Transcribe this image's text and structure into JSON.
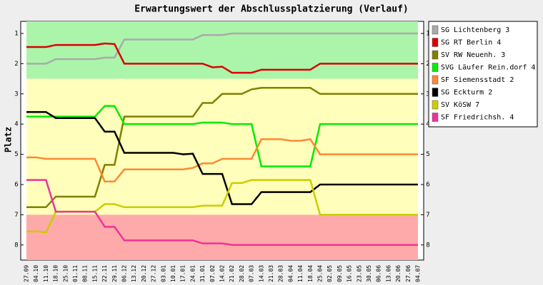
{
  "chart_data": {
    "type": "line",
    "title": "Erwartungswert der Abschlussplatzierung (Verlauf)",
    "y_label": "Platz",
    "categories": [
      "27.09",
      "04.10",
      "11.10",
      "18.10",
      "25.10",
      "01.11",
      "08.11",
      "15.11",
      "22.11",
      "29.11",
      "06.12",
      "13.12",
      "20.12",
      "27.12",
      "03.01",
      "10.01",
      "17.01",
      "24.01",
      "31.01",
      "07.02",
      "14.02",
      "21.02",
      "28.02",
      "07.03",
      "14.03",
      "21.03",
      "28.03",
      "04.04",
      "11.04",
      "18.04",
      "25.04",
      "02.05",
      "09.05",
      "16.05",
      "23.05",
      "30.05",
      "06.06",
      "13.06",
      "20.06",
      "27.06",
      "04.07"
    ],
    "ylim": [
      0.6,
      8.5
    ],
    "y_inverted": true,
    "yticks": [
      1,
      2,
      3,
      4,
      5,
      6,
      7,
      8
    ],
    "bands": [
      {
        "from": 0.6,
        "to": 2.5,
        "color": "#aaf5aa"
      },
      {
        "from": 2.5,
        "to": 7.0,
        "color": "#ffffbb"
      },
      {
        "from": 7.0,
        "to": 8.5,
        "color": "#ffaaaa"
      }
    ],
    "series": [
      {
        "name": "SG Lichtenberg 3",
        "color": "#aaaaaa",
        "values": [
          2.0,
          2.0,
          2.0,
          1.85,
          1.85,
          1.85,
          1.85,
          1.85,
          1.8,
          1.8,
          1.2,
          1.2,
          1.2,
          1.2,
          1.2,
          1.2,
          1.2,
          1.2,
          1.05,
          1.05,
          1.05,
          1.0,
          1.0,
          1.0,
          1.0,
          1.0,
          1.0,
          1.0,
          1.0,
          1.0,
          1.0,
          1.0,
          1.0,
          1.0,
          1.0,
          1.0,
          1.0,
          1.0,
          1.0,
          1.0,
          1.0
        ]
      },
      {
        "name": "SG RT Berlin 4",
        "color": "#dd0000",
        "values": [
          1.45,
          1.45,
          1.45,
          1.38,
          1.38,
          1.38,
          1.38,
          1.38,
          1.33,
          1.35,
          2.0,
          2.0,
          2.0,
          2.0,
          2.0,
          2.0,
          2.0,
          2.0,
          2.0,
          2.12,
          2.1,
          2.3,
          2.3,
          2.3,
          2.2,
          2.2,
          2.2,
          2.2,
          2.2,
          2.2,
          2.0,
          2.0,
          2.0,
          2.0,
          2.0,
          2.0,
          2.0,
          2.0,
          2.0,
          2.0,
          2.0
        ]
      },
      {
        "name": "SV RW Neuenh. 3",
        "color": "#808000",
        "values": [
          6.75,
          6.75,
          6.75,
          6.4,
          6.4,
          6.4,
          6.4,
          6.4,
          5.35,
          5.35,
          3.75,
          3.75,
          3.75,
          3.75,
          3.75,
          3.75,
          3.75,
          3.75,
          3.3,
          3.3,
          3.0,
          3.0,
          3.0,
          2.85,
          2.8,
          2.8,
          2.8,
          2.8,
          2.8,
          2.8,
          3.0,
          3.0,
          3.0,
          3.0,
          3.0,
          3.0,
          3.0,
          3.0,
          3.0,
          3.0,
          3.0
        ]
      },
      {
        "name": "SVG Läufer Rein.dorf 4",
        "color": "#00ee00",
        "values": [
          3.75,
          3.75,
          3.75,
          3.75,
          3.75,
          3.75,
          3.75,
          3.75,
          3.4,
          3.4,
          4.0,
          4.0,
          4.0,
          4.0,
          4.0,
          4.0,
          4.0,
          4.0,
          3.95,
          3.95,
          3.95,
          4.0,
          4.0,
          4.0,
          5.4,
          5.4,
          5.4,
          5.4,
          5.4,
          5.4,
          4.0,
          4.0,
          4.0,
          4.0,
          4.0,
          4.0,
          4.0,
          4.0,
          4.0,
          4.0,
          4.0
        ]
      },
      {
        "name": "SF Siemensstadt 2",
        "color": "#ff8833",
        "values": [
          5.1,
          5.1,
          5.15,
          5.15,
          5.15,
          5.15,
          5.15,
          5.15,
          5.9,
          5.9,
          5.5,
          5.5,
          5.5,
          5.5,
          5.5,
          5.5,
          5.5,
          5.45,
          5.3,
          5.3,
          5.15,
          5.15,
          5.15,
          5.15,
          4.5,
          4.5,
          4.5,
          4.55,
          4.55,
          4.5,
          5.0,
          5.0,
          5.0,
          5.0,
          5.0,
          5.0,
          5.0,
          5.0,
          5.0,
          5.0,
          5.0
        ]
      },
      {
        "name": "SG Eckturm 2",
        "color": "#000000",
        "values": [
          3.6,
          3.6,
          3.6,
          3.8,
          3.8,
          3.8,
          3.8,
          3.8,
          4.25,
          4.25,
          4.95,
          4.95,
          4.95,
          4.95,
          4.95,
          4.95,
          5.0,
          4.98,
          5.65,
          5.65,
          5.65,
          6.65,
          6.65,
          6.65,
          6.25,
          6.25,
          6.25,
          6.25,
          6.25,
          6.25,
          6.0,
          6.0,
          6.0,
          6.0,
          6.0,
          6.0,
          6.0,
          6.0,
          6.0,
          6.0,
          6.0
        ]
      },
      {
        "name": "SV KöSW 7",
        "color": "#cccc00",
        "values": [
          7.55,
          7.55,
          7.58,
          6.9,
          6.9,
          6.9,
          6.9,
          6.9,
          6.65,
          6.65,
          6.75,
          6.75,
          6.75,
          6.75,
          6.75,
          6.75,
          6.75,
          6.75,
          6.7,
          6.7,
          6.7,
          5.95,
          5.95,
          5.85,
          5.85,
          5.85,
          5.85,
          5.85,
          5.85,
          5.85,
          7.0,
          7.0,
          7.0,
          7.0,
          7.0,
          7.0,
          7.0,
          7.0,
          7.0,
          7.0,
          7.0
        ]
      },
      {
        "name": "SF Friedrichsh. 4",
        "color": "#ee3399",
        "values": [
          5.85,
          5.85,
          5.85,
          6.9,
          6.9,
          6.9,
          6.9,
          6.9,
          7.4,
          7.4,
          7.85,
          7.85,
          7.85,
          7.85,
          7.85,
          7.85,
          7.85,
          7.85,
          7.95,
          7.95,
          7.95,
          8.0,
          8.0,
          8.0,
          8.0,
          8.0,
          8.0,
          8.0,
          8.0,
          8.0,
          8.0,
          8.0,
          8.0,
          8.0,
          8.0,
          8.0,
          8.0,
          8.0,
          8.0,
          8.0,
          8.0
        ]
      }
    ]
  }
}
